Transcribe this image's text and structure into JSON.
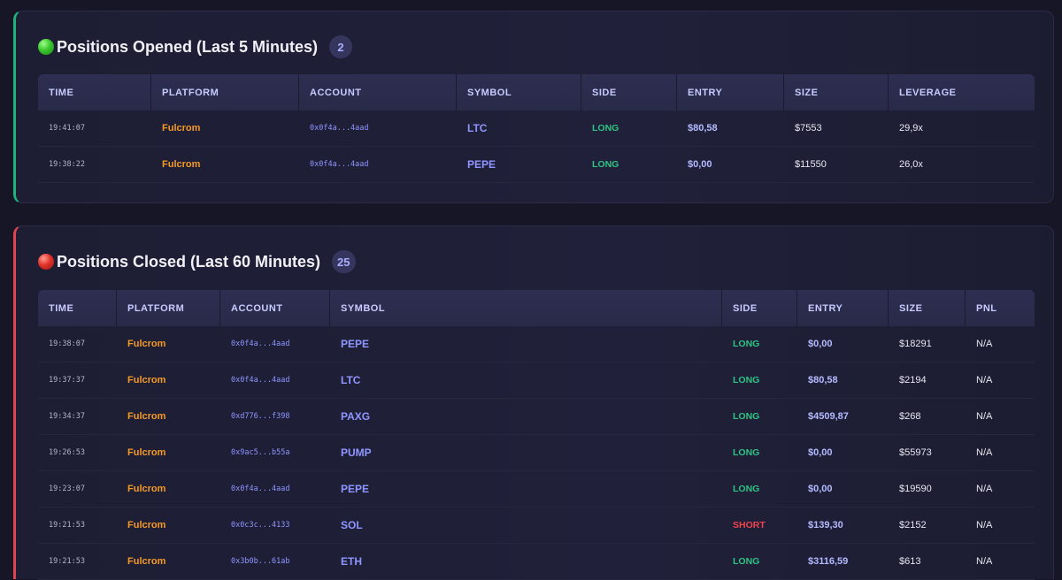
{
  "opened": {
    "title": "Positions Opened (Last 5 Minutes)",
    "count": "2",
    "columns": [
      "TIME",
      "PLATFORM",
      "ACCOUNT",
      "SYMBOL",
      "SIDE",
      "ENTRY",
      "SIZE",
      "LEVERAGE"
    ],
    "rows": [
      {
        "time": "19:41:07",
        "platform": "Fulcrom",
        "account": "0x0f4a...4aad",
        "symbol": "LTC",
        "side": "LONG",
        "entry": "$80,58",
        "size": "$7553",
        "leverage": "29,9x"
      },
      {
        "time": "19:38:22",
        "platform": "Fulcrom",
        "account": "0x0f4a...4aad",
        "symbol": "PEPE",
        "side": "LONG",
        "entry": "$0,00",
        "size": "$11550",
        "leverage": "26,0x"
      }
    ]
  },
  "closed": {
    "title": "Positions Closed (Last 60 Minutes)",
    "count": "25",
    "columns": [
      "TIME",
      "PLATFORM",
      "ACCOUNT",
      "SYMBOL",
      "SIDE",
      "ENTRY",
      "SIZE",
      "PNL"
    ],
    "rows": [
      {
        "time": "19:38:07",
        "platform": "Fulcrom",
        "account": "0x0f4a...4aad",
        "symbol": "PEPE",
        "side": "LONG",
        "entry": "$0,00",
        "size": "$18291",
        "pnl": "N/A"
      },
      {
        "time": "19:37:37",
        "platform": "Fulcrom",
        "account": "0x0f4a...4aad",
        "symbol": "LTC",
        "side": "LONG",
        "entry": "$80,58",
        "size": "$2194",
        "pnl": "N/A"
      },
      {
        "time": "19:34:37",
        "platform": "Fulcrom",
        "account": "0xd776...f398",
        "symbol": "PAXG",
        "side": "LONG",
        "entry": "$4509,87",
        "size": "$268",
        "pnl": "N/A"
      },
      {
        "time": "19:26:53",
        "platform": "Fulcrom",
        "account": "0x9ac5...b55a",
        "symbol": "PUMP",
        "side": "LONG",
        "entry": "$0,00",
        "size": "$55973",
        "pnl": "N/A"
      },
      {
        "time": "19:23:07",
        "platform": "Fulcrom",
        "account": "0x0f4a...4aad",
        "symbol": "PEPE",
        "side": "LONG",
        "entry": "$0,00",
        "size": "$19590",
        "pnl": "N/A"
      },
      {
        "time": "19:21:53",
        "platform": "Fulcrom",
        "account": "0x0c3c...4133",
        "symbol": "SOL",
        "side": "SHORT",
        "entry": "$139,30",
        "size": "$2152",
        "pnl": "N/A"
      },
      {
        "time": "19:21:53",
        "platform": "Fulcrom",
        "account": "0x3b0b...61ab",
        "symbol": "ETH",
        "side": "LONG",
        "entry": "$3116,59",
        "size": "$613",
        "pnl": "N/A"
      }
    ]
  }
}
